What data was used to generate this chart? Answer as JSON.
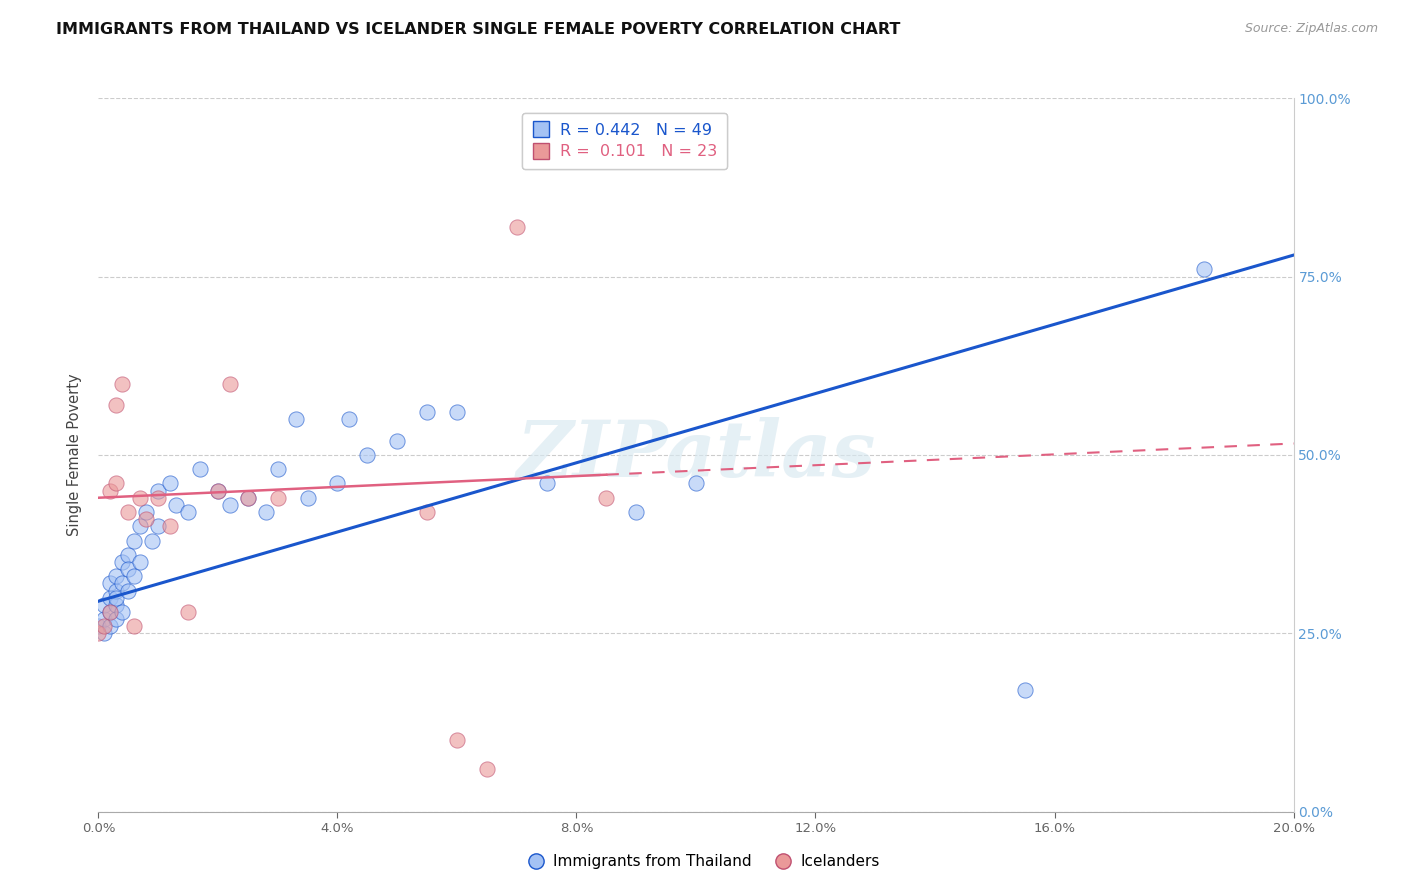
{
  "title": "IMMIGRANTS FROM THAILAND VS ICELANDER SINGLE FEMALE POVERTY CORRELATION CHART",
  "source": "Source: ZipAtlas.com",
  "ylabel": "Single Female Poverty",
  "r_thailand": 0.442,
  "n_thailand": 49,
  "r_icelander": 0.101,
  "n_icelander": 23,
  "color_thailand": "#a4c2f4",
  "color_icelander": "#ea9999",
  "trendline_thailand": "#1a56cc",
  "trendline_icelander": "#e06080",
  "watermark": "ZIPatlas",
  "xlim": [
    0.0,
    0.2
  ],
  "ylim": [
    0.0,
    1.0
  ],
  "thailand_x": [
    0.0,
    0.001,
    0.001,
    0.001,
    0.002,
    0.002,
    0.002,
    0.002,
    0.003,
    0.003,
    0.003,
    0.003,
    0.003,
    0.004,
    0.004,
    0.004,
    0.005,
    0.005,
    0.005,
    0.006,
    0.006,
    0.007,
    0.007,
    0.008,
    0.009,
    0.01,
    0.01,
    0.012,
    0.013,
    0.015,
    0.017,
    0.02,
    0.022,
    0.025,
    0.028,
    0.03,
    0.033,
    0.035,
    0.04,
    0.042,
    0.045,
    0.05,
    0.055,
    0.06,
    0.075,
    0.09,
    0.1,
    0.155,
    0.185
  ],
  "thailand_y": [
    0.26,
    0.25,
    0.27,
    0.29,
    0.28,
    0.26,
    0.3,
    0.32,
    0.29,
    0.31,
    0.27,
    0.3,
    0.33,
    0.32,
    0.35,
    0.28,
    0.36,
    0.31,
    0.34,
    0.38,
    0.33,
    0.4,
    0.35,
    0.42,
    0.38,
    0.4,
    0.45,
    0.46,
    0.43,
    0.42,
    0.48,
    0.45,
    0.43,
    0.44,
    0.42,
    0.48,
    0.55,
    0.44,
    0.46,
    0.55,
    0.5,
    0.52,
    0.56,
    0.56,
    0.46,
    0.42,
    0.46,
    0.17,
    0.76
  ],
  "icelander_x": [
    0.0,
    0.001,
    0.002,
    0.002,
    0.003,
    0.003,
    0.004,
    0.005,
    0.006,
    0.007,
    0.008,
    0.01,
    0.012,
    0.015,
    0.02,
    0.022,
    0.025,
    0.03,
    0.055,
    0.06,
    0.065,
    0.07,
    0.085
  ],
  "icelander_y": [
    0.25,
    0.26,
    0.45,
    0.28,
    0.46,
    0.57,
    0.6,
    0.42,
    0.26,
    0.44,
    0.41,
    0.44,
    0.4,
    0.28,
    0.45,
    0.6,
    0.44,
    0.44,
    0.42,
    0.1,
    0.06,
    0.82,
    0.44
  ]
}
